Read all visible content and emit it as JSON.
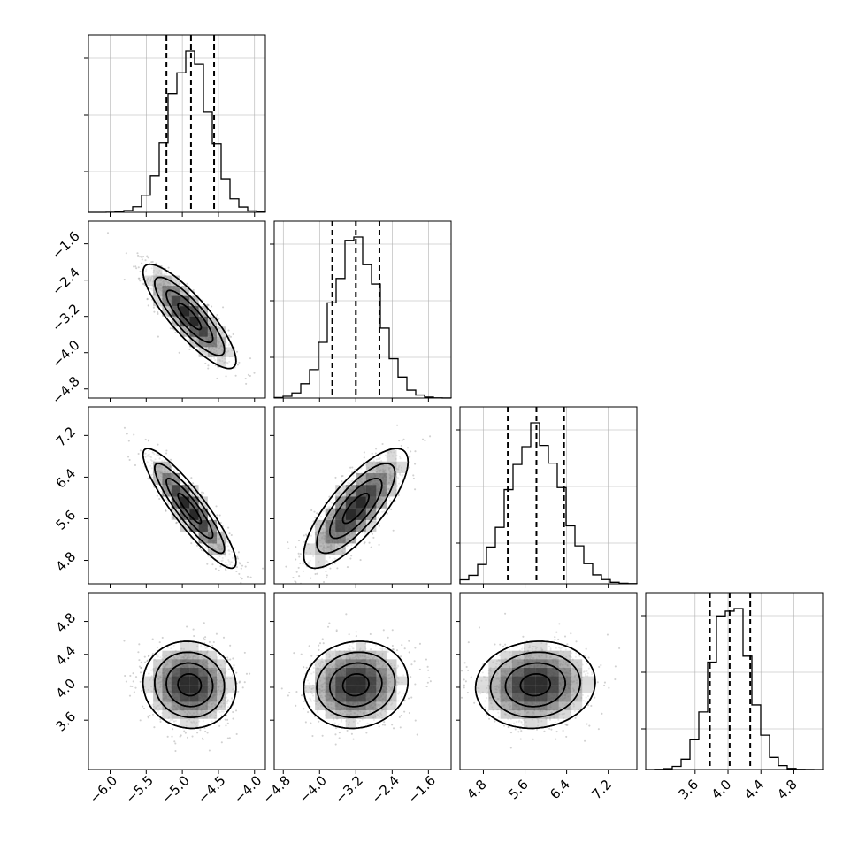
{
  "chart_data": {
    "type": "corner",
    "grid": true,
    "parameters": [
      {
        "xlim": [
          -6.3,
          -3.85
        ],
        "ticks": [
          -6.0,
          -5.5,
          -5.0,
          -4.5,
          -4.0
        ],
        "tick_labels": [
          "−6.0",
          "−5.5",
          "−5.0",
          "−4.5",
          "−4.0"
        ],
        "mean": -4.9,
        "sd": 0.28,
        "quantiles": [
          -5.22,
          -4.88,
          -4.56
        ]
      },
      {
        "xlim": [
          -5.0,
          -1.1
        ],
        "ticks": [
          -4.8,
          -4.0,
          -3.2,
          -2.4,
          -1.6
        ],
        "tick_labels": [
          "−4.8",
          "−4.0",
          "−3.2",
          "−2.4",
          "−1.6"
        ],
        "mean": -3.2,
        "sd": 0.5,
        "quantiles": [
          -3.72,
          -3.2,
          -2.68
        ]
      },
      {
        "xlim": [
          4.35,
          7.75
        ],
        "ticks": [
          4.8,
          5.6,
          6.4,
          7.2
        ],
        "tick_labels": [
          "4.8",
          "5.6",
          "6.4",
          "7.2"
        ],
        "mean": 5.8,
        "sd": 0.5,
        "quantiles": [
          5.27,
          5.82,
          6.35
        ]
      },
      {
        "xlim": [
          3.0,
          5.15
        ],
        "ticks": [
          3.6,
          4.0,
          4.4,
          4.8
        ],
        "tick_labels": [
          "3.6",
          "4.0",
          "4.4",
          "4.8"
        ],
        "mean": 4.03,
        "sd": 0.23,
        "quantiles": [
          3.78,
          4.02,
          4.27
        ]
      }
    ],
    "correlations": [
      {
        "i": 1,
        "j": 0,
        "r": -0.85
      },
      {
        "i": 2,
        "j": 0,
        "r": -0.9
      },
      {
        "i": 2,
        "j": 1,
        "r": 0.78
      },
      {
        "i": 3,
        "j": 0,
        "r": -0.05
      },
      {
        "i": 3,
        "j": 1,
        "r": 0.08
      },
      {
        "i": 3,
        "j": 2,
        "r": 0.07
      }
    ],
    "contour_levels_sigma": [
      0.5,
      1.0,
      1.5,
      2.0
    ],
    "colors": {
      "hist": "#000000",
      "contour": "#000000",
      "points": "#9a9a9a",
      "grid": "#b0b0b0",
      "density": "#000000"
    }
  }
}
